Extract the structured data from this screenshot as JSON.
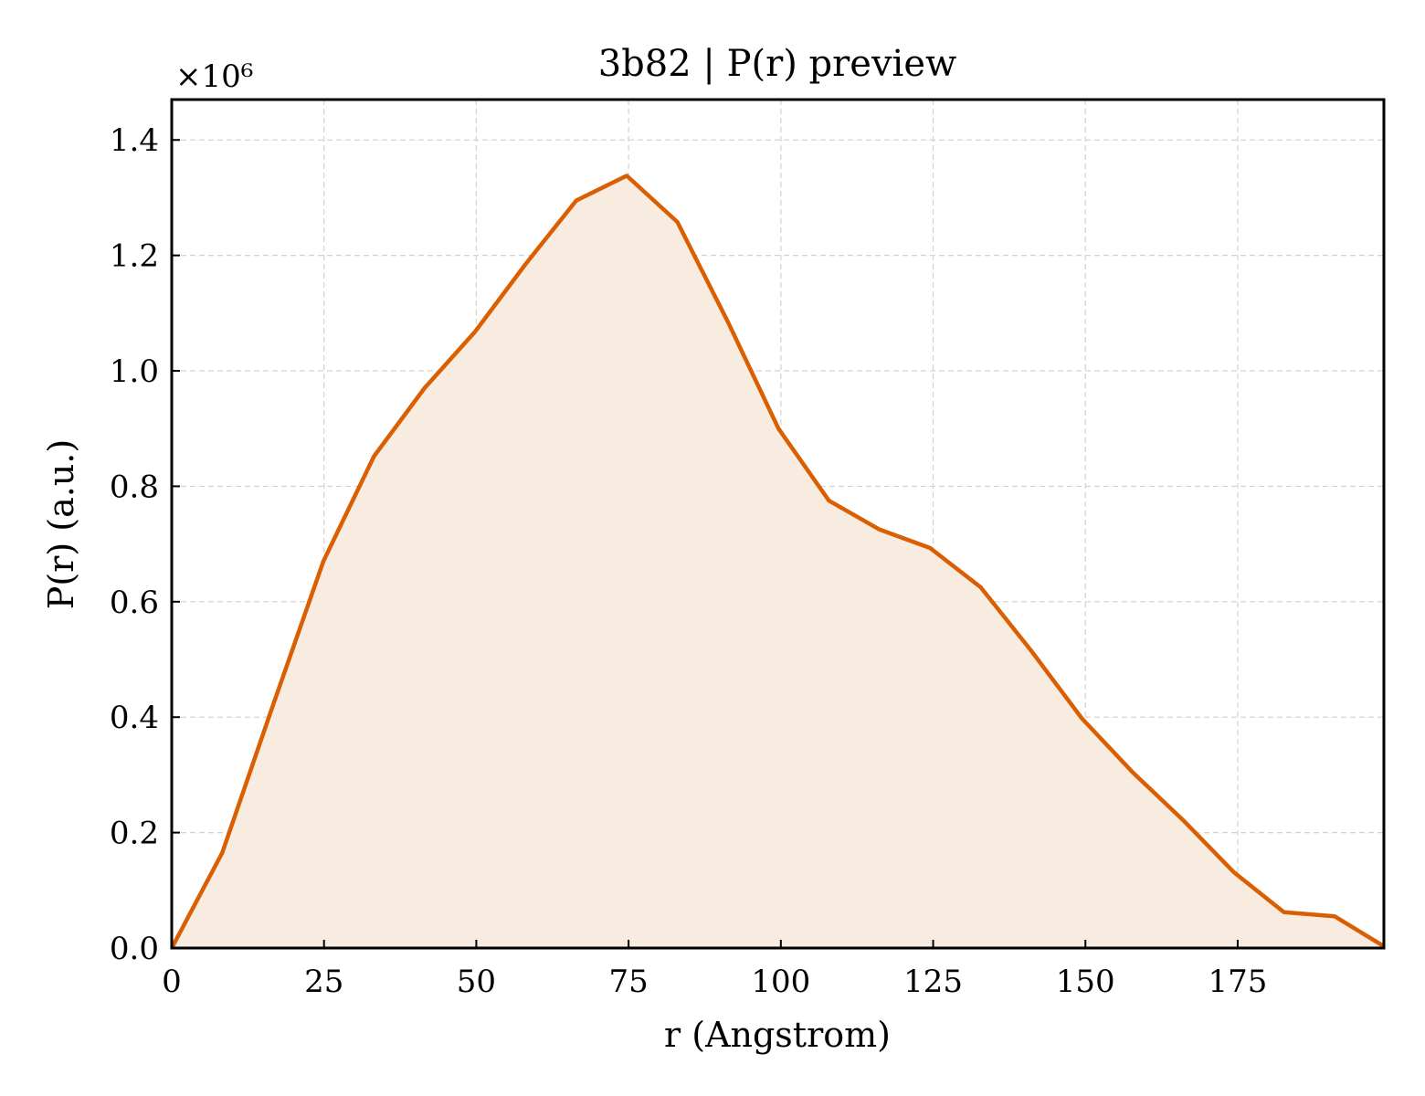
{
  "chart_data": {
    "type": "area",
    "title": "3b82 | P(r) preview",
    "xlabel": "r (Angstrom)",
    "ylabel": "P(r) (a.u.)",
    "y_scale_label": "×10⁶",
    "y_multiplier": 1000000,
    "xlim": [
      0,
      199
    ],
    "ylim": [
      0,
      1.47
    ],
    "x_ticks": [
      0,
      25,
      50,
      75,
      100,
      125,
      150,
      175
    ],
    "y_ticks": [
      "0.0",
      "0.2",
      "0.4",
      "0.6",
      "0.8",
      "1.0",
      "1.2",
      "1.4"
    ],
    "grid": true,
    "line_color": "#d95f02",
    "fill_color": "#f8ebe0",
    "series": [
      {
        "x": [
          0,
          8.3,
          16.6,
          24.9,
          33.2,
          41.5,
          49.8,
          58.1,
          66.4,
          74.7,
          83.0,
          91.3,
          99.6,
          107.9,
          116.2,
          124.5,
          132.8,
          141.1,
          149.4,
          157.7,
          166.0,
          174.3,
          182.6,
          190.9,
          199.0
        ],
        "y": [
          0.0,
          0.165,
          0.42,
          0.67,
          0.852,
          0.97,
          1.068,
          1.185,
          1.295,
          1.338,
          1.258,
          1.085,
          0.9,
          0.775,
          0.725,
          0.693,
          0.625,
          0.515,
          0.398,
          0.305,
          0.222,
          0.132,
          0.062,
          0.055,
          0.003
        ]
      }
    ]
  }
}
